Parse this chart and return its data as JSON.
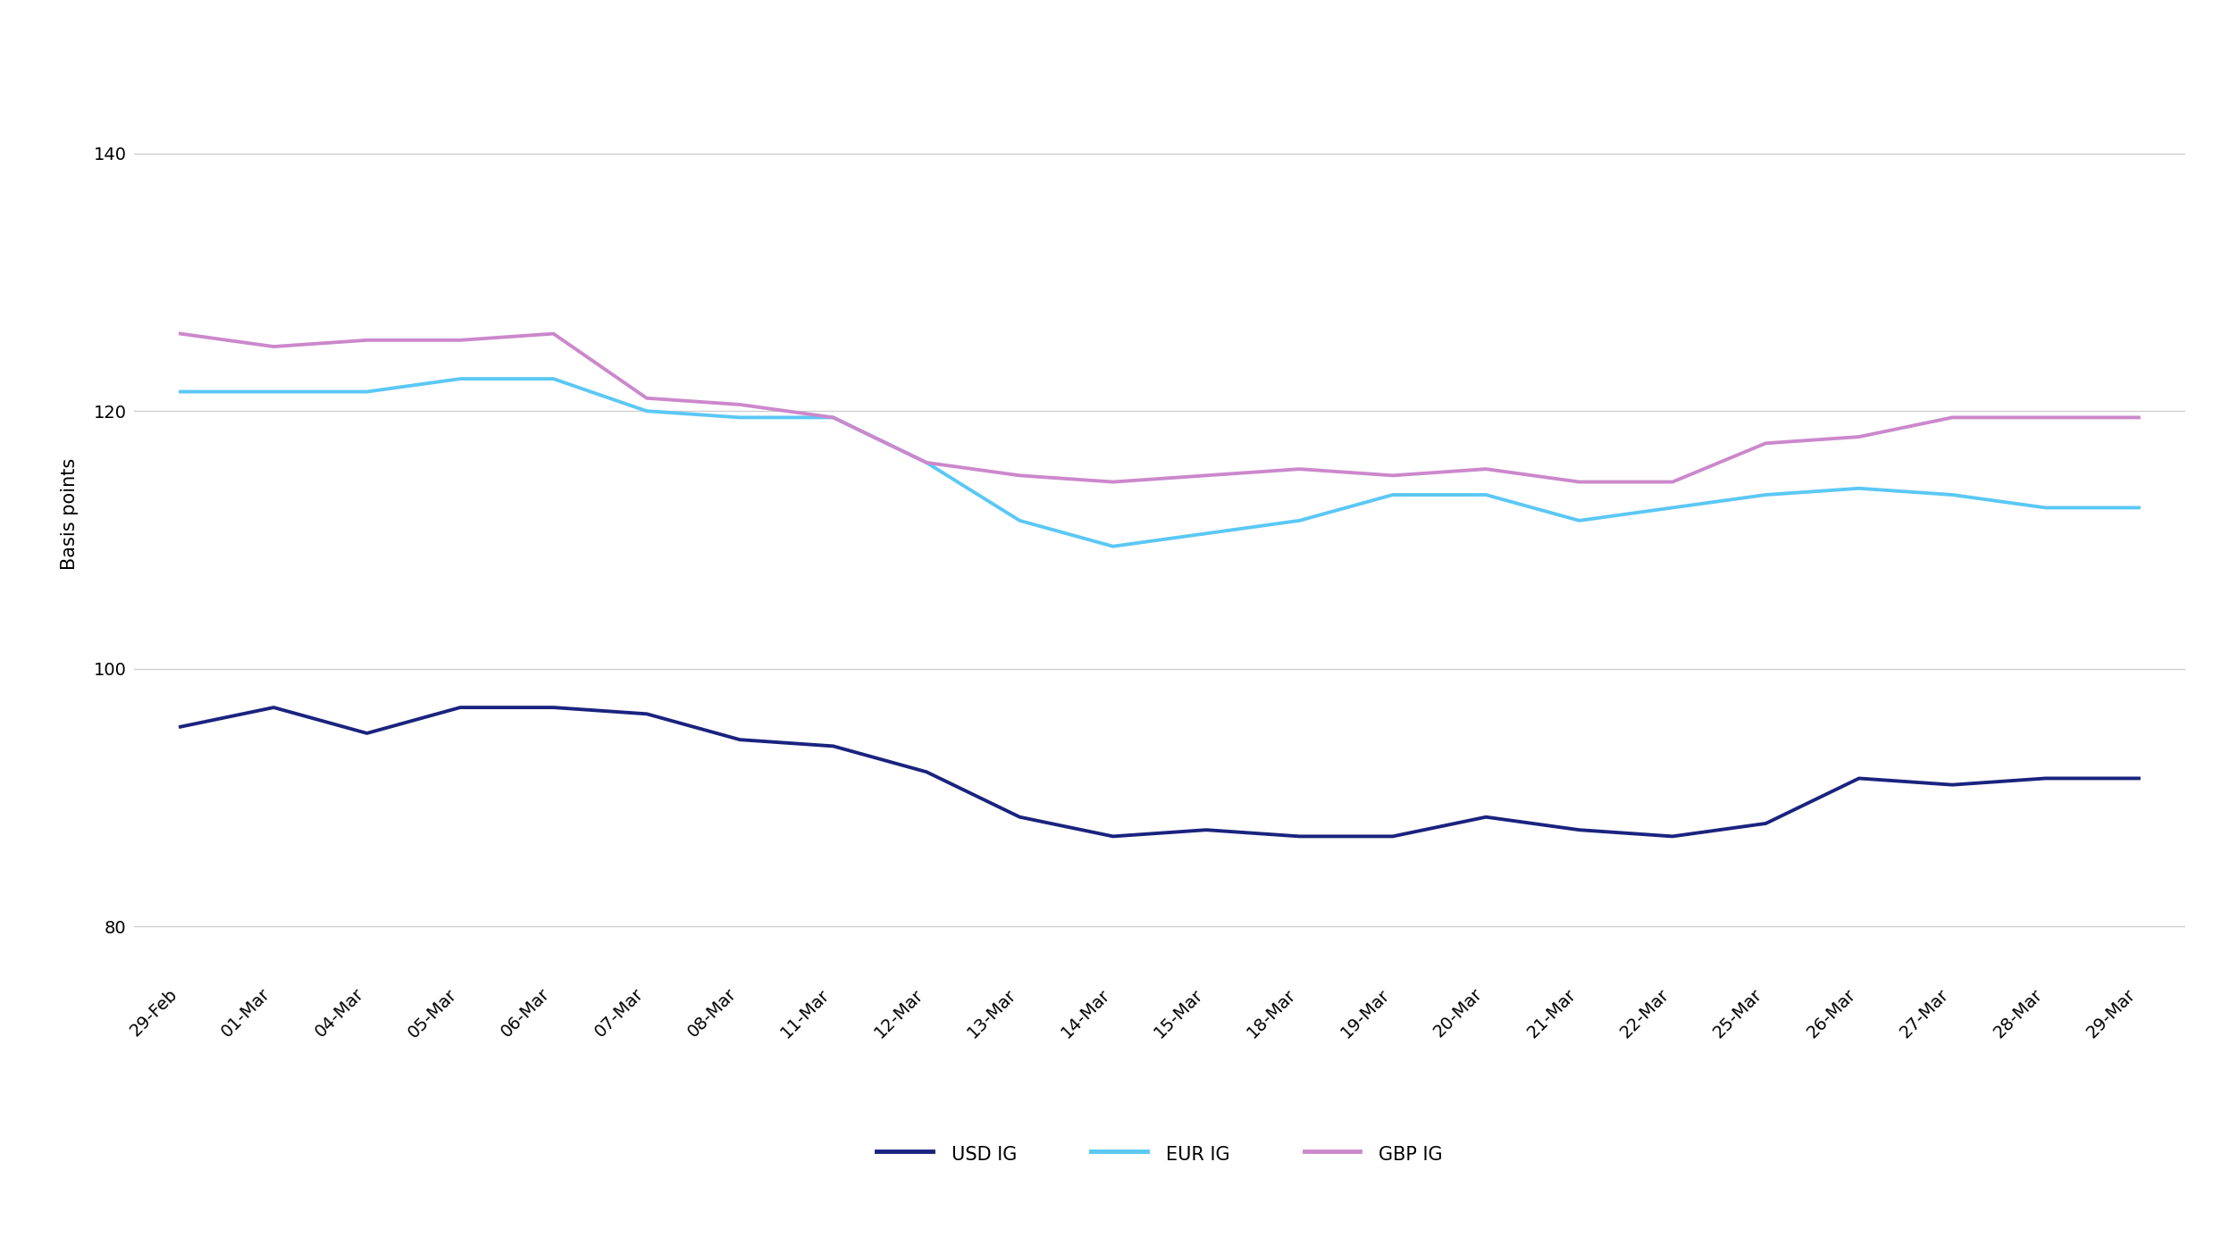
{
  "dates": [
    "29-Feb",
    "01-Mar",
    "04-Mar",
    "05-Mar",
    "06-Mar",
    "07-Mar",
    "08-Mar",
    "11-Mar",
    "12-Mar",
    "13-Mar",
    "14-Mar",
    "15-Mar",
    "18-Mar",
    "19-Mar",
    "20-Mar",
    "21-Mar",
    "22-Mar",
    "25-Mar",
    "26-Mar",
    "27-Mar",
    "28-Mar",
    "29-Mar"
  ],
  "usd_ig": [
    95.5,
    97.0,
    95.0,
    97.0,
    97.0,
    96.5,
    94.5,
    94.0,
    92.0,
    88.5,
    87.0,
    87.5,
    87.0,
    87.0,
    88.5,
    87.5,
    87.0,
    88.0,
    91.5,
    91.0,
    91.5,
    91.5
  ],
  "eur_ig": [
    121.5,
    121.5,
    121.5,
    122.5,
    122.5,
    120.0,
    119.5,
    119.5,
    116.0,
    111.5,
    109.5,
    110.5,
    111.5,
    113.5,
    113.5,
    111.5,
    112.5,
    113.5,
    114.0,
    113.5,
    112.5,
    112.5
  ],
  "gbp_ig": [
    126.0,
    125.0,
    125.5,
    125.5,
    126.0,
    121.0,
    120.5,
    119.5,
    116.0,
    115.0,
    114.5,
    115.0,
    115.5,
    115.0,
    115.5,
    114.5,
    114.5,
    117.5,
    118.0,
    119.5,
    119.5,
    119.5
  ],
  "usd_color": "#1a237e",
  "eur_color": "#5bc8f5",
  "gbp_color": "#cc88cc",
  "usd_label": "USD IG",
  "eur_label": "EUR IG",
  "gbp_label": "GBP IG",
  "ylabel": "Basis points",
  "yticks": [
    80,
    100,
    120,
    140
  ],
  "ylim": [
    76,
    148
  ],
  "background_color": "#ffffff",
  "grid_color": "#cccccc",
  "line_width": 2.8,
  "axis_fontsize": 15,
  "tick_fontsize": 14,
  "legend_fontsize": 15
}
